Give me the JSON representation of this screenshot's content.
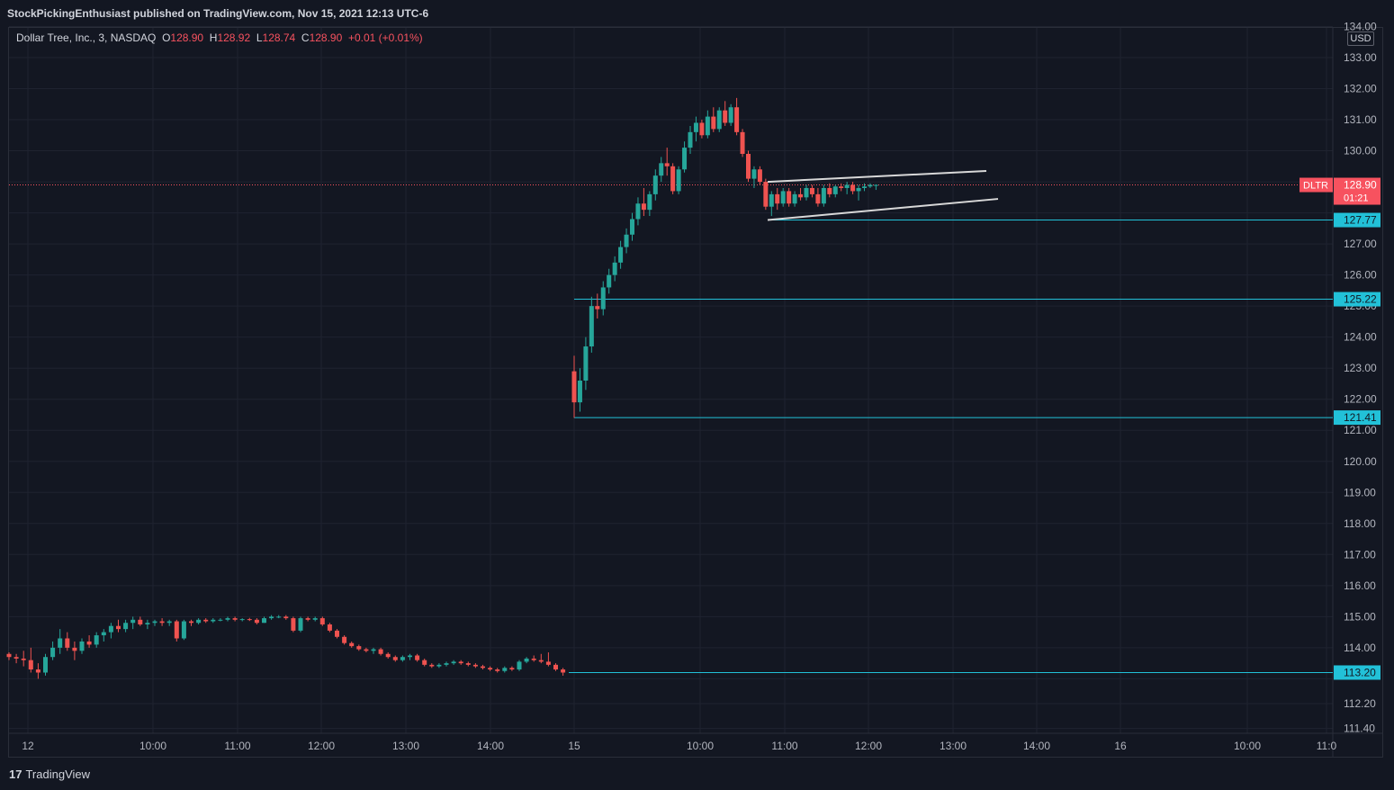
{
  "header": {
    "title": "StockPickingEnthusiast published on TradingView.com, Nov 15, 2021 12:13 UTC-6"
  },
  "legend": {
    "symbol": "Dollar Tree, Inc., 3, NASDAQ",
    "open_label": "O",
    "open": "128.90",
    "high_label": "H",
    "high": "128.92",
    "low_label": "L",
    "low": "128.74",
    "close_label": "C",
    "close": "128.90",
    "change": "+0.01 (+0.01%)"
  },
  "currency": "USD",
  "footer": {
    "brand": "TradingView",
    "logo": "17"
  },
  "colors": {
    "background": "#131722",
    "grid": "#1f2330",
    "up": "#26a69a",
    "down": "#ef5350",
    "hline": "#22c1d8",
    "channel": "#d8d8d8",
    "price_tag": "#f7525f"
  },
  "chart_data": {
    "type": "candlestick",
    "ylim": [
      111.4,
      134.0
    ],
    "y_ticks": [
      111.4,
      112.2,
      113.0,
      114.0,
      115.0,
      116.0,
      117.0,
      118.0,
      119.0,
      120.0,
      121.0,
      122.0,
      123.0,
      124.0,
      125.0,
      126.0,
      127.0,
      128.0,
      129.0,
      130.0,
      131.0,
      132.0,
      133.0,
      134.0
    ],
    "y_tick_labels": [
      "111.40",
      "112.20",
      "",
      "114.00",
      "115.00",
      "116.00",
      "117.00",
      "118.00",
      "119.00",
      "120.00",
      "121.00",
      "122.00",
      "123.00",
      "124.00",
      "125.00",
      "126.00",
      "127.00",
      "",
      "",
      "130.00",
      "131.00",
      "132.00",
      "133.00",
      "134.00"
    ],
    "x_tick_labels": [
      "12",
      "10:00",
      "11:00",
      "12:00",
      "13:00",
      "14:00",
      "15",
      "10:00",
      "11:00",
      "12:00",
      "13:00",
      "14:00",
      "16",
      "10:00",
      "11:0"
    ],
    "current_price": {
      "ticker": "DLTR",
      "value": "128.90",
      "countdown": "01:21",
      "price": 128.9
    },
    "horizontal_levels": [
      {
        "price": 127.77,
        "label": "127.77"
      },
      {
        "price": 125.22,
        "label": "125.22"
      },
      {
        "price": 121.41,
        "label": "121.41"
      },
      {
        "price": 113.2,
        "label": "113.20"
      }
    ],
    "channel": {
      "upper": [
        [
          129.0,
          129.35
        ]
      ],
      "lower": [
        [
          127.77,
          128.45
        ]
      ]
    },
    "sessions": [
      {
        "name": "12",
        "candles": [
          [
            113.8,
            113.85,
            113.6,
            113.7
          ],
          [
            113.7,
            113.8,
            113.5,
            113.65
          ],
          [
            113.65,
            113.9,
            113.4,
            113.6
          ],
          [
            113.6,
            114.0,
            113.2,
            113.3
          ],
          [
            113.3,
            113.5,
            113.0,
            113.2
          ],
          [
            113.2,
            113.8,
            113.1,
            113.7
          ],
          [
            113.7,
            114.2,
            113.6,
            114.0
          ],
          [
            114.0,
            114.6,
            113.8,
            114.3
          ],
          [
            114.3,
            114.5,
            113.9,
            114.0
          ],
          [
            114.0,
            114.2,
            113.6,
            113.9
          ],
          [
            113.9,
            114.3,
            113.8,
            114.2
          ],
          [
            114.2,
            114.4,
            114.0,
            114.1
          ],
          [
            114.1,
            114.5,
            114.0,
            114.4
          ],
          [
            114.4,
            114.6,
            114.2,
            114.5
          ],
          [
            114.5,
            114.8,
            114.3,
            114.7
          ],
          [
            114.7,
            114.9,
            114.5,
            114.6
          ],
          [
            114.6,
            114.9,
            114.5,
            114.8
          ],
          [
            114.8,
            115.0,
            114.6,
            114.9
          ],
          [
            114.9,
            115.0,
            114.7,
            114.75
          ],
          [
            114.75,
            114.9,
            114.6,
            114.8
          ],
          [
            114.8,
            114.9,
            114.7,
            114.85
          ],
          [
            114.85,
            114.95,
            114.7,
            114.8
          ],
          [
            114.8,
            114.9,
            114.7,
            114.85
          ],
          [
            114.85,
            114.9,
            114.2,
            114.3
          ],
          [
            114.3,
            114.9,
            114.25,
            114.85
          ],
          [
            114.85,
            114.9,
            114.7,
            114.8
          ],
          [
            114.8,
            114.95,
            114.75,
            114.9
          ],
          [
            114.9,
            114.95,
            114.8,
            114.85
          ],
          [
            114.85,
            114.95,
            114.8,
            114.9
          ],
          [
            114.9,
            114.95,
            114.85,
            114.9
          ],
          [
            114.9,
            115.0,
            114.85,
            114.95
          ],
          [
            114.95,
            115.0,
            114.85,
            114.9
          ],
          [
            114.9,
            114.95,
            114.85,
            114.92
          ],
          [
            114.92,
            114.96,
            114.86,
            114.9
          ],
          [
            114.9,
            114.95,
            114.75,
            114.8
          ],
          [
            114.8,
            115.0,
            114.8,
            114.95
          ],
          [
            114.95,
            115.05,
            114.9,
            115.0
          ],
          [
            115.0,
            115.05,
            114.95,
            115.0
          ],
          [
            115.0,
            115.05,
            114.9,
            114.95
          ],
          [
            114.95,
            115.0,
            114.5,
            114.55
          ],
          [
            114.55,
            115.0,
            114.5,
            114.95
          ],
          [
            114.95,
            115.0,
            114.85,
            114.9
          ],
          [
            114.9,
            115.0,
            114.85,
            114.95
          ],
          [
            114.95,
            115.0,
            114.7,
            114.75
          ],
          [
            114.75,
            114.8,
            114.5,
            114.55
          ],
          [
            114.55,
            114.6,
            114.3,
            114.35
          ],
          [
            114.35,
            114.4,
            114.1,
            114.15
          ],
          [
            114.15,
            114.2,
            114.0,
            114.05
          ],
          [
            114.05,
            114.1,
            113.9,
            113.95
          ],
          [
            113.95,
            114.0,
            113.85,
            113.9
          ],
          [
            113.9,
            114.0,
            113.8,
            113.95
          ],
          [
            113.95,
            114.0,
            113.75,
            113.8
          ],
          [
            113.8,
            113.85,
            113.65,
            113.7
          ],
          [
            113.7,
            113.75,
            113.55,
            113.6
          ],
          [
            113.6,
            113.75,
            113.55,
            113.7
          ],
          [
            113.7,
            113.8,
            113.6,
            113.75
          ],
          [
            113.75,
            113.8,
            113.55,
            113.6
          ],
          [
            113.6,
            113.65,
            113.4,
            113.45
          ],
          [
            113.45,
            113.5,
            113.35,
            113.4
          ],
          [
            113.4,
            113.5,
            113.35,
            113.45
          ],
          [
            113.45,
            113.55,
            113.4,
            113.5
          ],
          [
            113.5,
            113.6,
            113.45,
            113.55
          ],
          [
            113.55,
            113.6,
            113.45,
            113.5
          ],
          [
            113.5,
            113.55,
            113.4,
            113.45
          ],
          [
            113.45,
            113.5,
            113.35,
            113.4
          ],
          [
            113.4,
            113.45,
            113.3,
            113.35
          ],
          [
            113.35,
            113.4,
            113.25,
            113.3
          ],
          [
            113.3,
            113.35,
            113.2,
            113.25
          ],
          [
            113.25,
            113.4,
            113.2,
            113.35
          ],
          [
            113.35,
            113.4,
            113.25,
            113.3
          ],
          [
            113.3,
            113.6,
            113.25,
            113.55
          ],
          [
            113.55,
            113.7,
            113.5,
            113.65
          ],
          [
            113.65,
            113.75,
            113.55,
            113.6
          ],
          [
            113.6,
            113.8,
            113.5,
            113.55
          ],
          [
            113.55,
            113.85,
            113.4,
            113.45
          ],
          [
            113.45,
            113.5,
            113.25,
            113.3
          ],
          [
            113.3,
            113.35,
            113.1,
            113.2
          ]
        ]
      },
      {
        "name": "15",
        "candles": [
          [
            122.9,
            123.4,
            121.4,
            121.9
          ],
          [
            121.9,
            123.0,
            121.6,
            122.6
          ],
          [
            122.6,
            124.0,
            122.3,
            123.7
          ],
          [
            123.7,
            125.3,
            123.5,
            125.0
          ],
          [
            125.0,
            125.4,
            124.6,
            124.9
          ],
          [
            124.9,
            125.8,
            124.7,
            125.6
          ],
          [
            125.6,
            126.2,
            125.4,
            126.0
          ],
          [
            126.0,
            126.6,
            125.8,
            126.4
          ],
          [
            126.4,
            127.1,
            126.2,
            126.9
          ],
          [
            126.9,
            127.5,
            126.7,
            127.3
          ],
          [
            127.3,
            128.0,
            127.1,
            127.8
          ],
          [
            127.8,
            128.5,
            127.6,
            128.3
          ],
          [
            128.3,
            128.8,
            127.9,
            128.1
          ],
          [
            128.1,
            128.7,
            127.9,
            128.6
          ],
          [
            128.6,
            129.4,
            128.4,
            129.2
          ],
          [
            129.2,
            129.8,
            129.0,
            129.6
          ],
          [
            129.6,
            130.1,
            129.2,
            129.5
          ],
          [
            129.5,
            129.6,
            128.6,
            128.7
          ],
          [
            128.7,
            129.5,
            128.6,
            129.4
          ],
          [
            129.4,
            130.3,
            129.3,
            130.1
          ],
          [
            130.1,
            130.8,
            129.9,
            130.6
          ],
          [
            130.6,
            131.1,
            130.3,
            130.9
          ],
          [
            130.9,
            131.0,
            130.4,
            130.5
          ],
          [
            130.5,
            131.3,
            130.4,
            131.1
          ],
          [
            131.1,
            131.4,
            130.6,
            130.7
          ],
          [
            130.7,
            131.4,
            130.6,
            131.3
          ],
          [
            131.3,
            131.6,
            130.8,
            130.9
          ],
          [
            130.9,
            131.5,
            130.8,
            131.4
          ],
          [
            131.4,
            131.7,
            130.5,
            130.6
          ],
          [
            130.6,
            130.7,
            129.8,
            129.9
          ],
          [
            129.9,
            130.0,
            129.0,
            129.1
          ],
          [
            129.1,
            129.5,
            128.8,
            129.4
          ],
          [
            129.4,
            129.5,
            128.9,
            129.0
          ],
          [
            129.0,
            129.1,
            128.1,
            128.2
          ],
          [
            128.2,
            128.7,
            127.9,
            128.6
          ],
          [
            128.6,
            128.8,
            128.1,
            128.3
          ],
          [
            128.3,
            128.8,
            128.2,
            128.7
          ],
          [
            128.7,
            128.8,
            128.2,
            128.3
          ],
          [
            128.3,
            128.7,
            128.2,
            128.6
          ],
          [
            128.6,
            128.8,
            128.4,
            128.5
          ],
          [
            128.5,
            128.9,
            128.4,
            128.8
          ],
          [
            128.8,
            128.9,
            128.5,
            128.6
          ],
          [
            128.6,
            128.8,
            128.2,
            128.3
          ],
          [
            128.3,
            128.9,
            128.2,
            128.8
          ],
          [
            128.8,
            128.95,
            128.5,
            128.6
          ],
          [
            128.6,
            128.9,
            128.5,
            128.85
          ],
          [
            128.85,
            128.95,
            128.7,
            128.8
          ],
          [
            128.8,
            129.0,
            128.6,
            128.9
          ],
          [
            128.9,
            129.0,
            128.6,
            128.7
          ],
          [
            128.7,
            128.9,
            128.4,
            128.8
          ],
          [
            128.8,
            128.95,
            128.7,
            128.85
          ],
          [
            128.85,
            128.95,
            128.8,
            128.9
          ],
          [
            128.9,
            128.92,
            128.74,
            128.9
          ]
        ]
      }
    ]
  }
}
